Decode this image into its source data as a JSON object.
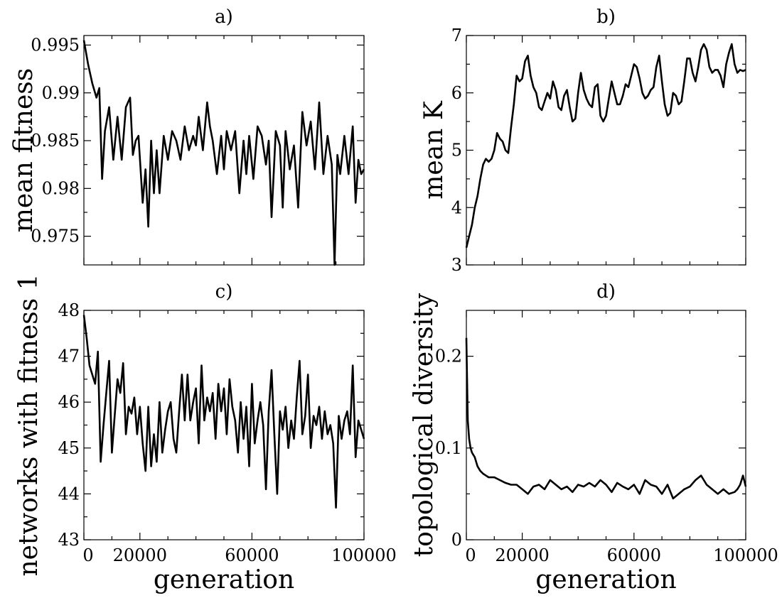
{
  "chart_data": [
    {
      "panel": "a)",
      "type": "line",
      "title": "a)",
      "xlabel": "",
      "ylabel": "mean fitness",
      "xlim": [
        0,
        100000
      ],
      "ylim": [
        0.972,
        0.996
      ],
      "yticks": [
        0.975,
        0.98,
        0.985,
        0.99,
        0.995
      ],
      "ytick_labels": [
        "0.975",
        "0.98",
        "0.985",
        "0.99",
        "0.995"
      ],
      "series": [
        {
          "name": "mean fitness",
          "x": [
            0,
            1500,
            3000,
            4500,
            5500,
            6500,
            7500,
            9000,
            10500,
            12000,
            13500,
            15000,
            16500,
            17500,
            18500,
            19500,
            21000,
            22000,
            23000,
            24000,
            25000,
            26000,
            27000,
            28500,
            30000,
            31500,
            33000,
            34500,
            36000,
            37500,
            39000,
            40000,
            41000,
            42500,
            44000,
            45000,
            46000,
            47500,
            49000,
            50000,
            51000,
            52500,
            54000,
            55500,
            57000,
            58000,
            59000,
            60500,
            62000,
            63500,
            65000,
            66000,
            67000,
            68500,
            70000,
            71000,
            72000,
            73500,
            75000,
            76500,
            78000,
            79500,
            81000,
            82500,
            84000,
            85500,
            87000,
            88500,
            89500,
            90500,
            91500,
            93000,
            94500,
            96000,
            97000,
            98000,
            99000,
            100000
          ],
          "y": [
            0.9955,
            0.993,
            0.991,
            0.9895,
            0.9905,
            0.981,
            0.986,
            0.9885,
            0.983,
            0.9875,
            0.983,
            0.9885,
            0.9895,
            0.9835,
            0.985,
            0.9855,
            0.9785,
            0.982,
            0.976,
            0.985,
            0.9795,
            0.984,
            0.9795,
            0.9855,
            0.983,
            0.986,
            0.985,
            0.983,
            0.9865,
            0.984,
            0.9855,
            0.9845,
            0.9875,
            0.984,
            0.989,
            0.9865,
            0.985,
            0.9815,
            0.9855,
            0.982,
            0.986,
            0.984,
            0.986,
            0.9795,
            0.985,
            0.9815,
            0.9855,
            0.981,
            0.9865,
            0.9855,
            0.9825,
            0.985,
            0.977,
            0.986,
            0.9845,
            0.978,
            0.986,
            0.982,
            0.9845,
            0.978,
            0.988,
            0.9845,
            0.987,
            0.982,
            0.989,
            0.9815,
            0.9855,
            0.9825,
            0.972,
            0.9835,
            0.9815,
            0.9855,
            0.9815,
            0.9865,
            0.9785,
            0.983,
            0.9815,
            0.982
          ]
        }
      ]
    },
    {
      "panel": "b)",
      "type": "line",
      "title": "b)",
      "xlabel": "",
      "ylabel": "mean K",
      "xlim": [
        0,
        100000
      ],
      "ylim": [
        3,
        7
      ],
      "yticks": [
        3,
        4,
        5,
        6,
        7
      ],
      "ytick_labels": [
        "3",
        "4",
        "5",
        "6",
        "7"
      ],
      "series": [
        {
          "name": "mean K",
          "x": [
            0,
            1000,
            2000,
            3000,
            4000,
            5000,
            6000,
            7000,
            8000,
            9000,
            10000,
            11000,
            12000,
            13000,
            14000,
            15000,
            16000,
            17000,
            18000,
            19000,
            20000,
            21000,
            22000,
            23000,
            24000,
            25000,
            26000,
            27000,
            28000,
            29000,
            30000,
            31000,
            32000,
            33000,
            34000,
            35000,
            36000,
            37000,
            38000,
            39000,
            40000,
            41000,
            42000,
            43000,
            44000,
            45000,
            46000,
            47000,
            48000,
            49000,
            50000,
            51000,
            52000,
            53000,
            54000,
            55000,
            56000,
            57000,
            58000,
            59000,
            60000,
            61000,
            62000,
            63000,
            64000,
            65000,
            66000,
            67000,
            68000,
            69000,
            70000,
            71000,
            72000,
            73000,
            74000,
            75000,
            76000,
            77000,
            78000,
            79000,
            80000,
            81000,
            82000,
            83000,
            84000,
            85000,
            86000,
            87000,
            88000,
            89000,
            90000,
            91000,
            92000,
            93000,
            94000,
            95000,
            96000,
            97000,
            98000,
            99000,
            100000
          ],
          "y": [
            3.3,
            3.5,
            3.7,
            4.0,
            4.2,
            4.5,
            4.75,
            4.85,
            4.8,
            4.85,
            5.0,
            5.3,
            5.2,
            5.15,
            5.0,
            4.95,
            5.4,
            5.8,
            6.3,
            6.2,
            6.25,
            6.55,
            6.65,
            6.3,
            6.1,
            6.0,
            5.75,
            5.7,
            5.85,
            6.0,
            5.9,
            6.2,
            6.05,
            5.75,
            5.7,
            5.95,
            6.05,
            5.75,
            5.5,
            5.55,
            6.0,
            6.35,
            6.05,
            5.9,
            5.8,
            5.75,
            6.1,
            6.15,
            5.6,
            5.5,
            5.6,
            5.9,
            6.2,
            6.0,
            5.8,
            5.8,
            5.95,
            6.15,
            6.1,
            6.3,
            6.5,
            6.45,
            6.25,
            6.0,
            5.9,
            5.95,
            6.05,
            6.1,
            6.45,
            6.65,
            6.2,
            5.8,
            5.6,
            5.65,
            6.0,
            5.95,
            5.8,
            5.85,
            6.2,
            6.6,
            6.6,
            6.35,
            6.2,
            6.45,
            6.75,
            6.85,
            6.75,
            6.45,
            6.35,
            6.4,
            6.4,
            6.3,
            6.1,
            6.5,
            6.7,
            6.85,
            6.5,
            6.35,
            6.4,
            6.38,
            6.4
          ]
        }
      ]
    },
    {
      "panel": "c)",
      "type": "line",
      "title": "c)",
      "xlabel": "generation",
      "ylabel": "networks with fitness 1",
      "xlim": [
        0,
        100000
      ],
      "ylim": [
        43,
        48
      ],
      "yticks": [
        43,
        44,
        45,
        46,
        47,
        48
      ],
      "ytick_labels": [
        "43",
        "44",
        "45",
        "46",
        "47",
        "48"
      ],
      "xticks": [
        0,
        20000,
        60000,
        100000
      ],
      "xtick_labels": [
        "0",
        "20000",
        "60000",
        "100000"
      ],
      "series": [
        {
          "name": "networks with fitness 1",
          "x": [
            0,
            1000,
            2000,
            3000,
            4000,
            5000,
            6000,
            7000,
            8000,
            9000,
            10000,
            11000,
            12000,
            13000,
            14000,
            15000,
            16000,
            17000,
            18000,
            19000,
            20000,
            21000,
            22000,
            23000,
            24000,
            25000,
            26000,
            27000,
            28000,
            29000,
            30000,
            31000,
            32000,
            33000,
            34000,
            35000,
            36000,
            37000,
            38000,
            39000,
            40000,
            41000,
            42000,
            43000,
            44000,
            45000,
            46000,
            47000,
            48000,
            49000,
            50000,
            51000,
            52000,
            53000,
            54000,
            55000,
            56000,
            57000,
            58000,
            59000,
            60000,
            61000,
            62000,
            63000,
            64000,
            65000,
            66000,
            67000,
            68000,
            69000,
            70000,
            71000,
            72000,
            73000,
            74000,
            75000,
            76000,
            77000,
            78000,
            79000,
            80000,
            81000,
            82000,
            83000,
            84000,
            85000,
            86000,
            87000,
            88000,
            89000,
            90000,
            91000,
            92000,
            93000,
            94000,
            95000,
            96000,
            97000,
            98000,
            99000,
            100000
          ],
          "y": [
            47.9,
            47.4,
            46.8,
            46.6,
            46.4,
            47.1,
            44.7,
            45.5,
            46.2,
            46.9,
            44.9,
            45.7,
            46.5,
            46.2,
            46.85,
            45.3,
            45.9,
            45.75,
            46.1,
            45.3,
            45.9,
            45.1,
            44.5,
            45.9,
            44.6,
            45.3,
            44.7,
            46.0,
            44.9,
            45.4,
            45.8,
            46.0,
            45.2,
            44.9,
            45.8,
            46.6,
            45.6,
            46.6,
            45.6,
            46.0,
            46.3,
            45.1,
            46.8,
            45.6,
            46.1,
            45.8,
            46.2,
            45.2,
            46.4,
            45.8,
            46.3,
            45.3,
            46.5,
            45.9,
            45.6,
            44.9,
            46.0,
            45.2,
            45.9,
            44.6,
            46.4,
            45.1,
            45.6,
            46.0,
            45.5,
            44.1,
            45.8,
            46.7,
            45.3,
            44.0,
            45.8,
            45.4,
            45.9,
            45.0,
            45.6,
            45.2,
            46.1,
            46.9,
            45.3,
            45.7,
            46.6,
            45.0,
            45.7,
            45.5,
            45.9,
            45.2,
            45.8,
            45.3,
            45.5,
            45.1,
            43.7,
            45.7,
            45.2,
            45.6,
            45.8,
            45.3,
            46.8,
            44.8,
            45.6,
            45.4,
            45.2
          ]
        }
      ]
    },
    {
      "panel": "d)",
      "type": "line",
      "title": "d)",
      "xlabel": "generation",
      "ylabel": "topological diversity",
      "xlim": [
        0,
        100000
      ],
      "ylim": [
        0,
        0.25
      ],
      "yticks": [
        0,
        0.1,
        0.2
      ],
      "ytick_labels": [
        "0",
        "0.1",
        "0.2"
      ],
      "xticks": [
        0,
        20000,
        60000,
        100000
      ],
      "xtick_labels": [
        "0",
        "20000",
        "60000",
        "100000"
      ],
      "series": [
        {
          "name": "topological diversity",
          "x": [
            0,
            500,
            1000,
            1500,
            2000,
            3000,
            4000,
            5000,
            6000,
            7000,
            8000,
            10000,
            12000,
            14000,
            16000,
            18000,
            20000,
            22000,
            24000,
            26000,
            28000,
            30000,
            32000,
            34000,
            36000,
            38000,
            40000,
            42000,
            44000,
            46000,
            48000,
            50000,
            52000,
            54000,
            56000,
            58000,
            60000,
            62000,
            64000,
            66000,
            68000,
            70000,
            72000,
            74000,
            76000,
            78000,
            80000,
            82000,
            84000,
            86000,
            88000,
            90000,
            92000,
            94000,
            96000,
            97000,
            98000,
            99000,
            100000
          ],
          "y": [
            0.22,
            0.13,
            0.11,
            0.1,
            0.095,
            0.09,
            0.08,
            0.075,
            0.072,
            0.07,
            0.068,
            0.068,
            0.065,
            0.062,
            0.06,
            0.06,
            0.055,
            0.05,
            0.058,
            0.06,
            0.055,
            0.065,
            0.06,
            0.055,
            0.058,
            0.052,
            0.06,
            0.058,
            0.062,
            0.058,
            0.065,
            0.06,
            0.052,
            0.062,
            0.058,
            0.055,
            0.06,
            0.05,
            0.065,
            0.06,
            0.058,
            0.05,
            0.06,
            0.045,
            0.05,
            0.055,
            0.058,
            0.065,
            0.07,
            0.06,
            0.055,
            0.05,
            0.055,
            0.05,
            0.052,
            0.055,
            0.06,
            0.07,
            0.058
          ]
        }
      ]
    }
  ]
}
